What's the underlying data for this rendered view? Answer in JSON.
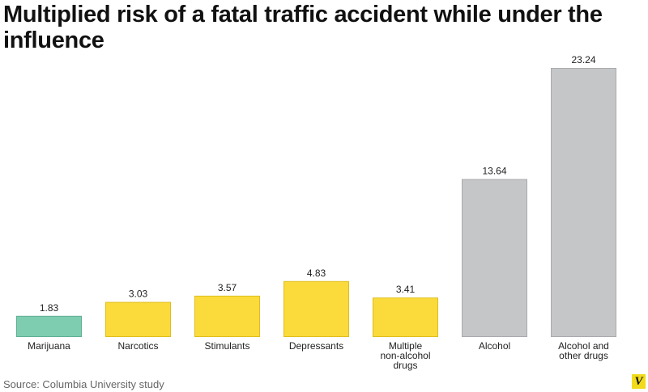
{
  "title": "Multiplied risk of a fatal traffic accident while under the influence",
  "source": "Source: Columbia University study",
  "logo": "V",
  "colors": {
    "marijuana": "#7ecdb0",
    "yellow": "#fbdb3c",
    "gray": "#c5c6c8",
    "logo": "#f2da1c"
  },
  "chart_data": {
    "type": "bar",
    "title": "Multiplied risk of a fatal traffic accident while under the influence",
    "xlabel": "",
    "ylabel": "",
    "ylim": [
      0,
      23.24
    ],
    "grid": false,
    "categories": [
      "Marijuana",
      "Narcotics",
      "Stimulants",
      "Depressants",
      "Multiple non-alcohol drugs",
      "Alcohol",
      "Alcohol and other drugs"
    ],
    "category_lines": [
      [
        "Marijuana"
      ],
      [
        "Narcotics"
      ],
      [
        "Stimulants"
      ],
      [
        "Depressants"
      ],
      [
        "Multiple",
        "non-alcohol",
        "drugs"
      ],
      [
        "Alcohol"
      ],
      [
        "Alcohol and",
        "other drugs"
      ]
    ],
    "values": [
      1.83,
      3.03,
      3.57,
      4.83,
      3.41,
      13.64,
      23.24
    ],
    "value_labels": [
      "1.83",
      "3.03",
      "3.57",
      "4.83",
      "3.41",
      "13.64",
      "23.24"
    ],
    "bar_colors": [
      "#7ecdb0",
      "#fbdb3c",
      "#fbdb3c",
      "#fbdb3c",
      "#fbdb3c",
      "#c5c6c8",
      "#c5c6c8"
    ],
    "bar_edge_colors": [
      "#5fae93",
      "#e0bd1c",
      "#e0bd1c",
      "#e0bd1c",
      "#e0bd1c",
      "#a9aaac",
      "#a9aaac"
    ]
  }
}
